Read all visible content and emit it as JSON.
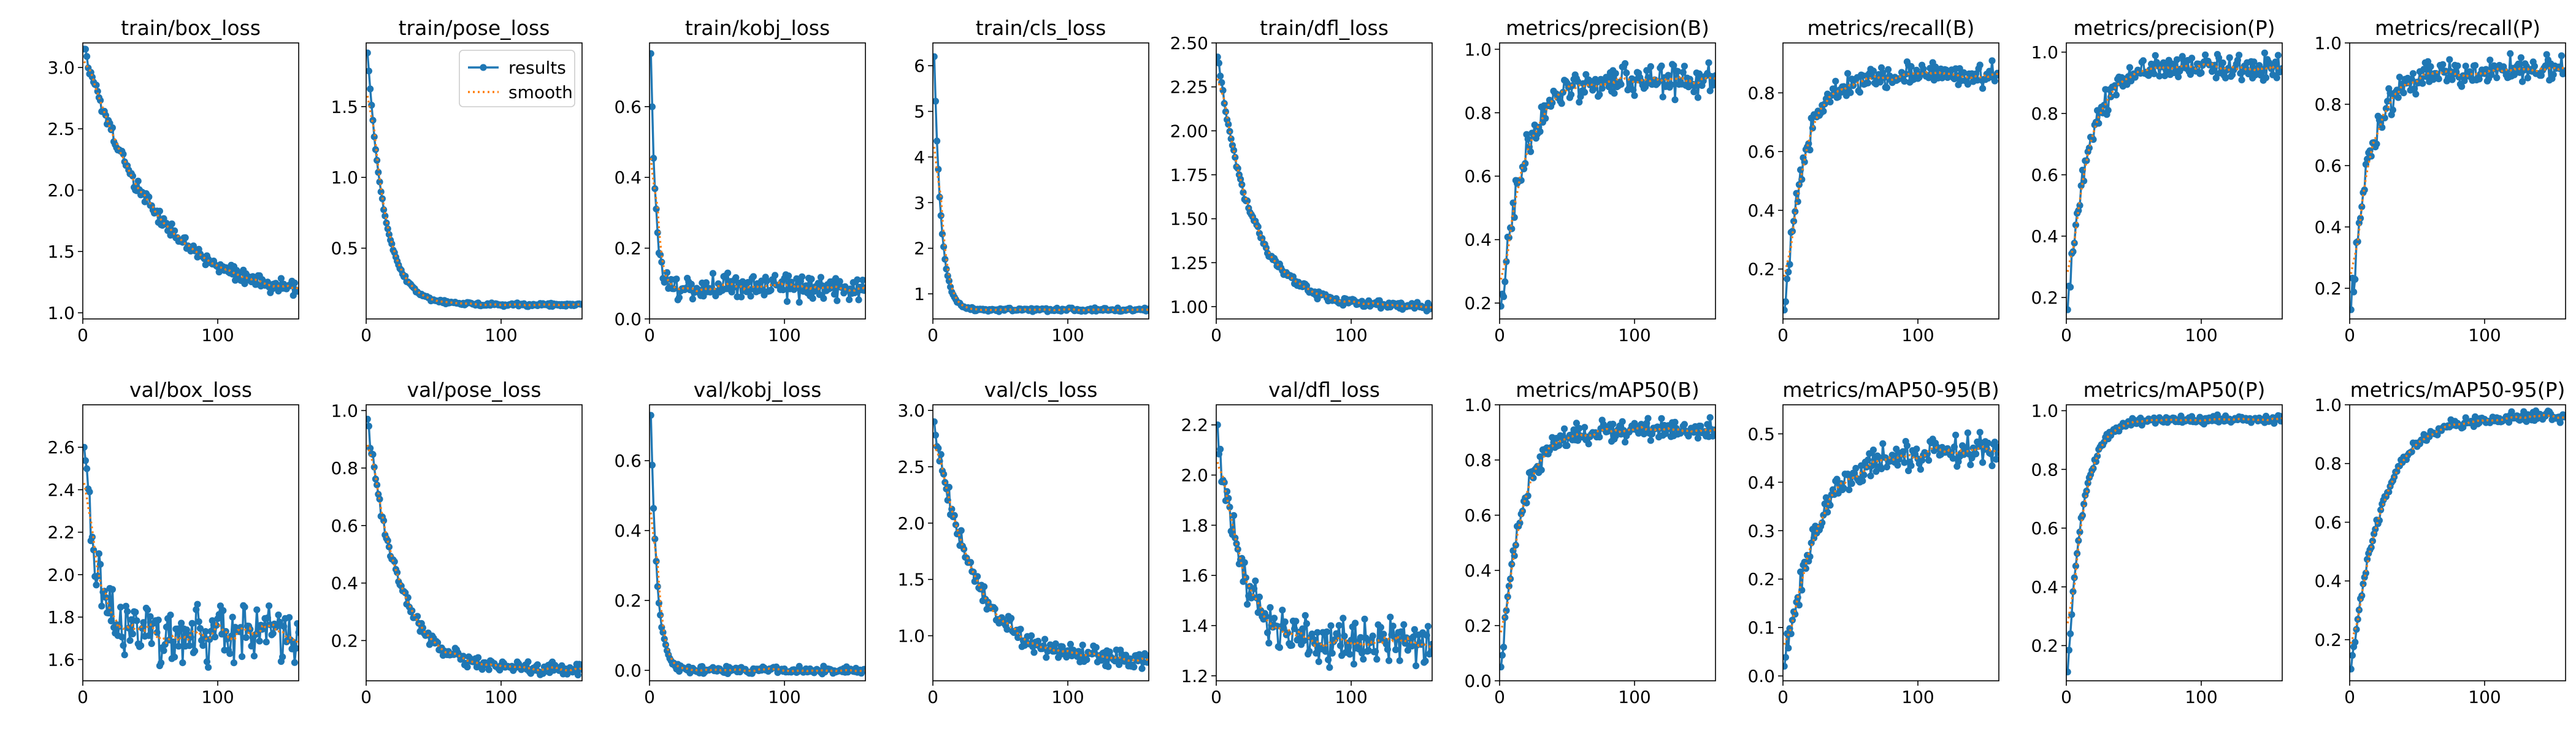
{
  "colors": {
    "results": "#1f77b4",
    "smooth": "#ff7f0e",
    "axes": "#000000",
    "background": "#ffffff"
  },
  "legend": {
    "entries": [
      "results",
      "smooth"
    ],
    "location": "top-right",
    "panel": 1
  },
  "chart_data": [
    {
      "type": "line",
      "title": "train/box_loss",
      "xlim": [
        0,
        160
      ],
      "ylim": [
        0.95,
        3.2
      ],
      "xticks": [
        0,
        100
      ],
      "yticks": [
        1.0,
        1.5,
        2.0,
        2.5,
        3.0
      ],
      "ytick_labels": [
        "1.0",
        "1.5",
        "2.0",
        "2.5",
        "3.0"
      ],
      "gen": {
        "kind": "decay",
        "start": 3.15,
        "end": 1.1,
        "k": 0.02,
        "noise": 0.05
      }
    },
    {
      "type": "line",
      "title": "train/pose_loss",
      "xlim": [
        0,
        160
      ],
      "ylim": [
        0.0,
        1.95
      ],
      "xticks": [
        0,
        100
      ],
      "yticks": [
        0.5,
        1.0,
        1.5
      ],
      "ytick_labels": [
        "0.5",
        "1.0",
        "1.5"
      ],
      "gen": {
        "kind": "decay",
        "start": 1.88,
        "end": 0.1,
        "k": 0.08,
        "noise": 0.01
      }
    },
    {
      "type": "line",
      "title": "train/kobj_loss",
      "xlim": [
        0,
        160
      ],
      "ylim": [
        0.0,
        0.78
      ],
      "xticks": [
        0,
        100
      ],
      "yticks": [
        0.0,
        0.2,
        0.4,
        0.6
      ],
      "ytick_labels": [
        "0.0",
        "0.2",
        "0.4",
        "0.6"
      ],
      "gen": {
        "kind": "decay",
        "start": 0.75,
        "end": 0.09,
        "k": 0.3,
        "noise": 0.03
      }
    },
    {
      "type": "line",
      "title": "train/cls_loss",
      "xlim": [
        0,
        160
      ],
      "ylim": [
        0.45,
        6.5
      ],
      "xticks": [
        0,
        100
      ],
      "yticks": [
        1,
        2,
        3,
        4,
        5,
        6
      ],
      "ytick_labels": [
        "1",
        "2",
        "3",
        "4",
        "5",
        "6"
      ],
      "gen": {
        "kind": "decay",
        "start": 6.2,
        "end": 0.65,
        "k": 0.2,
        "noise": 0.03
      }
    },
    {
      "type": "line",
      "title": "train/dfl_loss",
      "xlim": [
        0,
        160
      ],
      "ylim": [
        0.93,
        2.5
      ],
      "xticks": [
        0,
        100
      ],
      "yticks": [
        1.0,
        1.25,
        1.5,
        1.75,
        2.0,
        2.25,
        2.5
      ],
      "ytick_labels": [
        "1.00",
        "1.25",
        "1.50",
        "1.75",
        "2.00",
        "2.25",
        "2.50"
      ],
      "gen": {
        "kind": "decay",
        "start": 2.42,
        "end": 1.0,
        "k": 0.04,
        "noise": 0.02
      }
    },
    {
      "type": "line",
      "title": "metrics/precision(B)",
      "xlim": [
        0,
        160
      ],
      "ylim": [
        0.15,
        1.02
      ],
      "xticks": [
        0,
        100
      ],
      "yticks": [
        0.2,
        0.4,
        0.6,
        0.8,
        1.0
      ],
      "ytick_labels": [
        "0.2",
        "0.4",
        "0.6",
        "0.8",
        "1.0"
      ],
      "gen": {
        "kind": "rise",
        "start": 0.19,
        "end": 0.9,
        "k": 0.06,
        "noise": 0.045
      }
    },
    {
      "type": "line",
      "title": "metrics/recall(B)",
      "xlim": [
        0,
        160
      ],
      "ylim": [
        0.03,
        0.97
      ],
      "xticks": [
        0,
        100
      ],
      "yticks": [
        0.2,
        0.4,
        0.6,
        0.8
      ],
      "ytick_labels": [
        "0.2",
        "0.4",
        "0.6",
        "0.8"
      ],
      "gen": {
        "kind": "rise",
        "start": 0.06,
        "end": 0.86,
        "k": 0.07,
        "noise": 0.035
      }
    },
    {
      "type": "line",
      "title": "metrics/precision(P)",
      "xlim": [
        0,
        160
      ],
      "ylim": [
        0.13,
        1.03
      ],
      "xticks": [
        0,
        100
      ],
      "yticks": [
        0.2,
        0.4,
        0.6,
        0.8,
        1.0
      ],
      "ytick_labels": [
        "0.2",
        "0.4",
        "0.6",
        "0.8",
        "1.0"
      ],
      "gen": {
        "kind": "rise",
        "start": 0.16,
        "end": 0.95,
        "k": 0.07,
        "noise": 0.035
      }
    },
    {
      "type": "line",
      "title": "metrics/recall(P)",
      "xlim": [
        0,
        160
      ],
      "ylim": [
        0.1,
        1.0
      ],
      "xticks": [
        0,
        100
      ],
      "yticks": [
        0.2,
        0.4,
        0.6,
        0.8,
        1.0
      ],
      "ytick_labels": [
        "0.2",
        "0.4",
        "0.6",
        "0.8",
        "1.0"
      ],
      "gen": {
        "kind": "rise",
        "start": 0.13,
        "end": 0.91,
        "k": 0.07,
        "noise": 0.04
      }
    },
    {
      "type": "line",
      "title": "val/box_loss",
      "xlim": [
        0,
        160
      ],
      "ylim": [
        1.5,
        2.8
      ],
      "xticks": [
        0,
        100
      ],
      "yticks": [
        1.6,
        1.8,
        2.0,
        2.2,
        2.4,
        2.6
      ],
      "ytick_labels": [
        "1.6",
        "1.8",
        "2.0",
        "2.2",
        "2.4",
        "2.6"
      ],
      "gen": {
        "kind": "decay",
        "start": 2.6,
        "end": 1.72,
        "k": 0.12,
        "noise": 0.11
      }
    },
    {
      "type": "line",
      "title": "val/pose_loss",
      "xlim": [
        0,
        160
      ],
      "ylim": [
        0.06,
        1.02
      ],
      "xticks": [
        0,
        100
      ],
      "yticks": [
        0.2,
        0.4,
        0.6,
        0.8,
        1.0
      ],
      "ytick_labels": [
        "0.2",
        "0.4",
        "0.6",
        "0.8",
        "1.0"
      ],
      "gen": {
        "kind": "decay",
        "start": 0.97,
        "end": 0.1,
        "k": 0.045,
        "noise": 0.018
      }
    },
    {
      "type": "line",
      "title": "val/kobj_loss",
      "xlim": [
        0,
        160
      ],
      "ylim": [
        -0.03,
        0.76
      ],
      "xticks": [
        0,
        100
      ],
      "yticks": [
        0.0,
        0.2,
        0.4,
        0.6
      ],
      "ytick_labels": [
        "0.0",
        "0.2",
        "0.4",
        "0.6"
      ],
      "gen": {
        "kind": "decay",
        "start": 0.73,
        "end": 0.0,
        "k": 0.22,
        "noise": 0.008
      }
    },
    {
      "type": "line",
      "title": "val/cls_loss",
      "xlim": [
        0,
        160
      ],
      "ylim": [
        0.6,
        3.05
      ],
      "xticks": [
        0,
        100
      ],
      "yticks": [
        1.0,
        1.5,
        2.0,
        2.5,
        3.0
      ],
      "ytick_labels": [
        "1.0",
        "1.5",
        "2.0",
        "2.5",
        "3.0"
      ],
      "gen": {
        "kind": "decay",
        "start": 2.9,
        "end": 0.78,
        "k": 0.035,
        "noise": 0.07
      }
    },
    {
      "type": "line",
      "title": "val/dfl_loss",
      "xlim": [
        0,
        160
      ],
      "ylim": [
        1.18,
        2.28
      ],
      "xticks": [
        0,
        100
      ],
      "yticks": [
        1.2,
        1.4,
        1.6,
        1.8,
        2.0,
        2.2
      ],
      "ytick_labels": [
        "1.2",
        "1.4",
        "1.6",
        "1.8",
        "2.0",
        "2.2"
      ],
      "gen": {
        "kind": "decay",
        "start": 2.2,
        "end": 1.33,
        "k": 0.06,
        "noise": 0.07
      }
    },
    {
      "type": "line",
      "title": "metrics/mAP50(B)",
      "xlim": [
        0,
        160
      ],
      "ylim": [
        0.0,
        1.0
      ],
      "xticks": [
        0,
        100
      ],
      "yticks": [
        0.0,
        0.2,
        0.4,
        0.6,
        0.8,
        1.0
      ],
      "ytick_labels": [
        "0.0",
        "0.2",
        "0.4",
        "0.6",
        "0.8",
        "1.0"
      ],
      "gen": {
        "kind": "rise",
        "start": 0.05,
        "end": 0.91,
        "k": 0.07,
        "noise": 0.03
      }
    },
    {
      "type": "line",
      "title": "metrics/mAP50-95(B)",
      "xlim": [
        0,
        160
      ],
      "ylim": [
        -0.01,
        0.56
      ],
      "xticks": [
        0,
        100
      ],
      "yticks": [
        0.0,
        0.1,
        0.2,
        0.3,
        0.4,
        0.5
      ],
      "ytick_labels": [
        "0.0",
        "0.1",
        "0.2",
        "0.3",
        "0.4",
        "0.5"
      ],
      "gen": {
        "kind": "rise",
        "start": 0.02,
        "end": 0.47,
        "k": 0.04,
        "noise": 0.025
      }
    },
    {
      "type": "line",
      "title": "metrics/mAP50(P)",
      "xlim": [
        0,
        160
      ],
      "ylim": [
        0.08,
        1.02
      ],
      "xticks": [
        0,
        100
      ],
      "yticks": [
        0.2,
        0.4,
        0.6,
        0.8,
        1.0
      ],
      "ytick_labels": [
        "0.2",
        "0.4",
        "0.6",
        "0.8",
        "1.0"
      ],
      "gen": {
        "kind": "rise",
        "start": 0.11,
        "end": 0.97,
        "k": 0.09,
        "noise": 0.012
      }
    },
    {
      "type": "line",
      "title": "metrics/mAP50-95(P)",
      "xlim": [
        0,
        160
      ],
      "ylim": [
        0.06,
        1.0
      ],
      "xticks": [
        0,
        100
      ],
      "yticks": [
        0.2,
        0.4,
        0.6,
        0.8,
        1.0
      ],
      "ytick_labels": [
        "0.2",
        "0.4",
        "0.6",
        "0.8",
        "1.0"
      ],
      "gen": {
        "kind": "rise",
        "start": 0.1,
        "end": 0.96,
        "k": 0.045,
        "noise": 0.015
      }
    }
  ]
}
